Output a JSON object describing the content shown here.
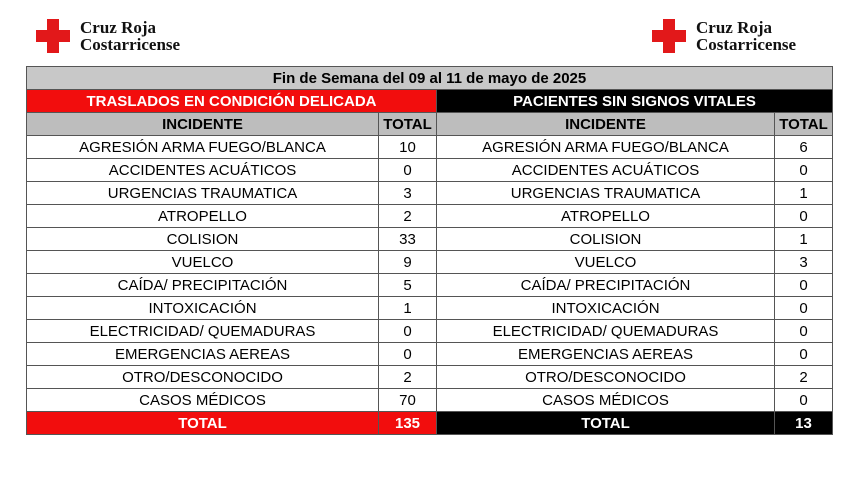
{
  "logo": {
    "line1": "Cruz Roja",
    "line2": "Costarricense"
  },
  "title": "Fin de Semana del 09 al 11 de mayo de 2025",
  "sections": {
    "left": "TRASLADOS EN CONDICIÓN DELICADA",
    "right": "PACIENTES SIN SIGNOS VITALES"
  },
  "headers": {
    "incident": "INCIDENTE",
    "total": "TOTAL"
  },
  "rows": [
    {
      "incident": "AGRESIÓN ARMA FUEGO/BLANCA",
      "left": "10",
      "right": "6"
    },
    {
      "incident": "ACCIDENTES ACUÁTICOS",
      "left": "0",
      "right": "0"
    },
    {
      "incident": "URGENCIAS TRAUMATICA",
      "left": "3",
      "right": "1"
    },
    {
      "incident": "ATROPELLO",
      "left": "2",
      "right": "0"
    },
    {
      "incident": "COLISION",
      "left": "33",
      "right": "1"
    },
    {
      "incident": "VUELCO",
      "left": "9",
      "right": "3"
    },
    {
      "incident": "CAÍDA/ PRECIPITACIÓN",
      "left": "5",
      "right": "0"
    },
    {
      "incident": "INTOXICACIÓN",
      "left": "1",
      "right": "0"
    },
    {
      "incident": "ELECTRICIDAD/ QUEMADURAS",
      "left": "0",
      "right": "0"
    },
    {
      "incident": "EMERGENCIAS AEREAS",
      "left": "0",
      "right": "0"
    },
    {
      "incident": "OTRO/DESCONOCIDO",
      "left": "2",
      "right": "2"
    },
    {
      "incident": "CASOS MÉDICOS",
      "left": "70",
      "right": "0"
    }
  ],
  "totals": {
    "label": "TOTAL",
    "left": "135",
    "right": "13"
  },
  "colors": {
    "red": "#f20d0d",
    "black": "#000000",
    "grey": "#c8c8c8"
  }
}
